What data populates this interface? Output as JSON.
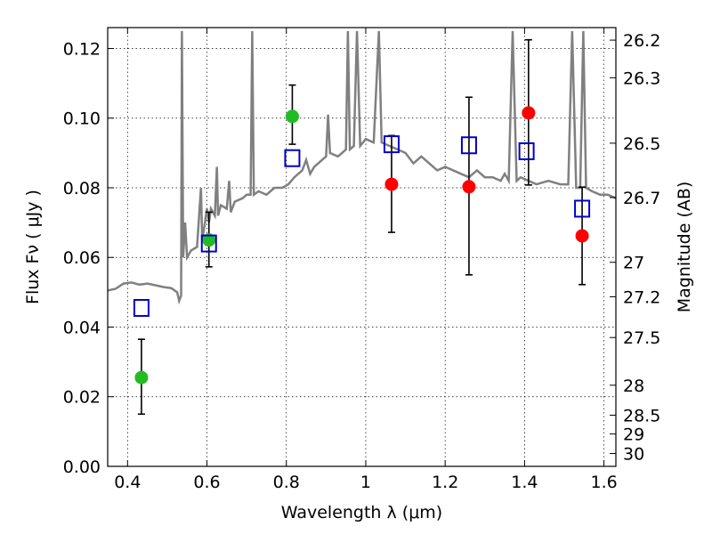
{
  "chart_data": {
    "type": "scatter",
    "xlabel": "Wavelength  λ (μm)",
    "ylabel": "Flux  Fν  ( μJy )",
    "y2label": "Magnitude (AB)",
    "xlim": [
      0.35,
      1.63
    ],
    "ylim": [
      0.0,
      0.126
    ],
    "grid": true,
    "x_ticks": [
      0.4,
      0.6,
      0.8,
      1.0,
      1.2,
      1.4,
      1.6
    ],
    "x_tick_labels": [
      "0.4",
      "0.6",
      "0.8",
      "1",
      "1.2",
      "1.4",
      "1.6"
    ],
    "y_ticks": [
      0.0,
      0.02,
      0.04,
      0.06,
      0.08,
      0.1,
      0.12
    ],
    "y_tick_labels": [
      "0.00",
      "0.02",
      "0.04",
      "0.06",
      "0.08",
      "0.10",
      "0.12"
    ],
    "y2_ticks": [
      {
        "label": "26.2",
        "flux": 0.1224
      },
      {
        "label": "26.3",
        "flux": 0.1116
      },
      {
        "label": "26.5",
        "flux": 0.0928
      },
      {
        "label": "26.7",
        "flux": 0.0772
      },
      {
        "label": "27",
        "flux": 0.0586
      },
      {
        "label": "27.2",
        "flux": 0.0487
      },
      {
        "label": "27.5",
        "flux": 0.037
      },
      {
        "label": "28",
        "flux": 0.0233
      },
      {
        "label": "28.5",
        "flux": 0.0147
      },
      {
        "label": "29",
        "flux": 0.0093
      },
      {
        "label": "30",
        "flux": 0.0037
      }
    ],
    "series": [
      {
        "marker": "filled-circle",
        "color": "#22bb22",
        "points": [
          {
            "x": 0.435,
            "y": 0.0255,
            "err_low": 0.015,
            "err_high": 0.0365
          },
          {
            "x": 0.605,
            "y": 0.065,
            "err_low": 0.0573,
            "err_high": 0.073
          },
          {
            "x": 0.815,
            "y": 0.1005,
            "err_low": 0.0925,
            "err_high": 0.1095
          }
        ]
      },
      {
        "marker": "filled-circle",
        "color": "#ff0000",
        "points": [
          {
            "x": 1.065,
            "y": 0.081,
            "err_low": 0.0672,
            "err_high": 0.095
          },
          {
            "x": 1.26,
            "y": 0.0803,
            "err_low": 0.055,
            "err_high": 0.106
          },
          {
            "x": 1.41,
            "y": 0.1015,
            "err_low": 0.0808,
            "err_high": 0.1225
          },
          {
            "x": 1.545,
            "y": 0.0662,
            "err_low": 0.0522,
            "err_high": 0.0802
          }
        ]
      },
      {
        "marker": "open-square",
        "color": "#0000cc",
        "points": [
          {
            "x": 0.435,
            "y": 0.0455
          },
          {
            "x": 0.605,
            "y": 0.064
          },
          {
            "x": 0.815,
            "y": 0.0885
          },
          {
            "x": 1.065,
            "y": 0.0925
          },
          {
            "x": 1.26,
            "y": 0.0922
          },
          {
            "x": 1.405,
            "y": 0.0905
          },
          {
            "x": 1.545,
            "y": 0.074
          }
        ]
      }
    ],
    "spectrum": {
      "color": "#808080",
      "points": [
        [
          0.35,
          0.0505
        ],
        [
          0.37,
          0.051
        ],
        [
          0.39,
          0.0525
        ],
        [
          0.41,
          0.0528
        ],
        [
          0.43,
          0.0522
        ],
        [
          0.45,
          0.0525
        ],
        [
          0.47,
          0.052
        ],
        [
          0.49,
          0.0515
        ],
        [
          0.51,
          0.0512
        ],
        [
          0.525,
          0.05
        ],
        [
          0.53,
          0.0475
        ],
        [
          0.535,
          0.049
        ],
        [
          0.537,
          0.125
        ],
        [
          0.54,
          0.06
        ],
        [
          0.545,
          0.07
        ],
        [
          0.55,
          0.06
        ],
        [
          0.56,
          0.062
        ],
        [
          0.575,
          0.063
        ],
        [
          0.585,
          0.08
        ],
        [
          0.588,
          0.065
        ],
        [
          0.595,
          0.07
        ],
        [
          0.6,
          0.074
        ],
        [
          0.605,
          0.07
        ],
        [
          0.61,
          0.074
        ],
        [
          0.62,
          0.072
        ],
        [
          0.625,
          0.086
        ],
        [
          0.628,
          0.072
        ],
        [
          0.635,
          0.075
        ],
        [
          0.65,
          0.074
        ],
        [
          0.656,
          0.082
        ],
        [
          0.66,
          0.073
        ],
        [
          0.67,
          0.076
        ],
        [
          0.69,
          0.077
        ],
        [
          0.7,
          0.078
        ],
        [
          0.71,
          0.078
        ],
        [
          0.714,
          0.125
        ],
        [
          0.718,
          0.078
        ],
        [
          0.73,
          0.079
        ],
        [
          0.75,
          0.078
        ],
        [
          0.77,
          0.08
        ],
        [
          0.79,
          0.08
        ],
        [
          0.805,
          0.081
        ],
        [
          0.82,
          0.083
        ],
        [
          0.84,
          0.085
        ],
        [
          0.85,
          0.088
        ],
        [
          0.86,
          0.084
        ],
        [
          0.87,
          0.086
        ],
        [
          0.89,
          0.088
        ],
        [
          0.9,
          0.089
        ],
        [
          0.905,
          0.101
        ],
        [
          0.91,
          0.09
        ],
        [
          0.93,
          0.089
        ],
        [
          0.94,
          0.09
        ],
        [
          0.95,
          0.091
        ],
        [
          0.955,
          0.125
        ],
        [
          0.96,
          0.091
        ],
        [
          0.97,
          0.092
        ],
        [
          0.978,
          0.125
        ],
        [
          0.986,
          0.092
        ],
        [
          1.0,
          0.094
        ],
        [
          1.02,
          0.093
        ],
        [
          1.033,
          0.125
        ],
        [
          1.04,
          0.093
        ],
        [
          1.06,
          0.092
        ],
        [
          1.08,
          0.091
        ],
        [
          1.1,
          0.09
        ],
        [
          1.12,
          0.087
        ],
        [
          1.14,
          0.089
        ],
        [
          1.16,
          0.087
        ],
        [
          1.18,
          0.085
        ],
        [
          1.2,
          0.086
        ],
        [
          1.22,
          0.085
        ],
        [
          1.24,
          0.084
        ],
        [
          1.26,
          0.083
        ],
        [
          1.28,
          0.085
        ],
        [
          1.3,
          0.083
        ],
        [
          1.32,
          0.083
        ],
        [
          1.34,
          0.082
        ],
        [
          1.35,
          0.084
        ],
        [
          1.36,
          0.082
        ],
        [
          1.37,
          0.125
        ],
        [
          1.38,
          0.082
        ],
        [
          1.39,
          0.083
        ],
        [
          1.41,
          0.082
        ],
        [
          1.43,
          0.081
        ],
        [
          1.46,
          0.082
        ],
        [
          1.49,
          0.081
        ],
        [
          1.51,
          0.081
        ],
        [
          1.52,
          0.125
        ],
        [
          1.53,
          0.08
        ],
        [
          1.54,
          0.08
        ],
        [
          1.548,
          0.125
        ],
        [
          1.555,
          0.08
        ],
        [
          1.57,
          0.079
        ],
        [
          1.59,
          0.078
        ],
        [
          1.61,
          0.078
        ],
        [
          1.63,
          0.077
        ]
      ]
    }
  }
}
